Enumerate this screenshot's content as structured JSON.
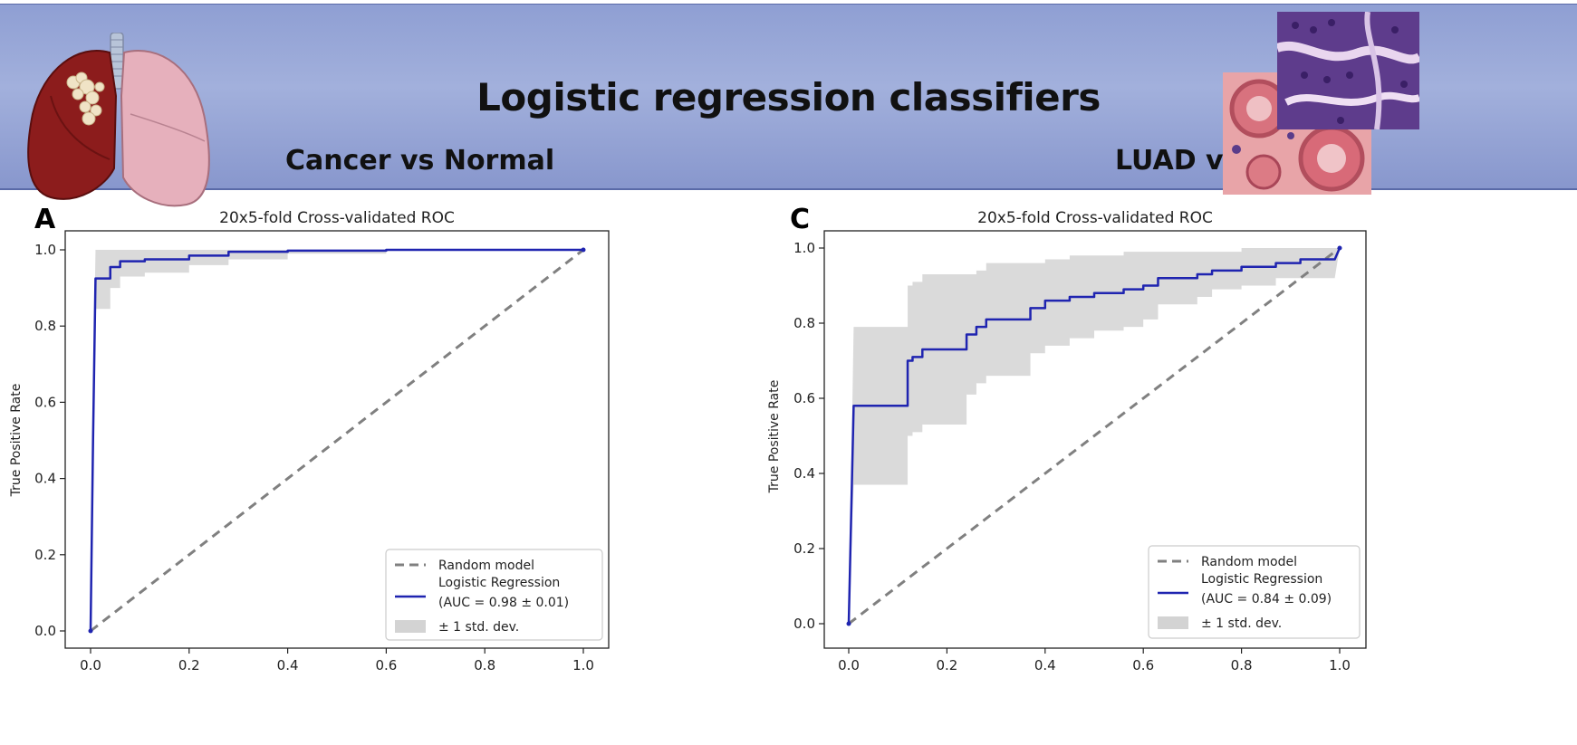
{
  "banner": {
    "title": "Logistic regression classifiers",
    "left_subtitle": "Cancer vs Normal",
    "right_subtitle": "LUAD vs LUSC"
  },
  "colors": {
    "banner": "#9aa8d8",
    "roc_line": "#1f24b0",
    "random_line": "#808080",
    "band": "#d3d3d3"
  },
  "chart_data": [
    {
      "panel_letter": "A",
      "type": "line",
      "title": "20x5-fold Cross-validated ROC",
      "xlabel": "",
      "ylabel": "True Positive Rate",
      "xlim": [
        0,
        1
      ],
      "ylim": [
        0,
        1
      ],
      "x_ticks": [
        "0.0",
        "0.2",
        "0.4",
        "0.6",
        "0.8",
        "1.0"
      ],
      "y_ticks": [
        "0.0",
        "0.2",
        "0.4",
        "0.6",
        "0.8",
        "1.0"
      ],
      "legend_position": "lower-right",
      "legend": {
        "random": "Random model",
        "roc_line1": "Logistic Regression",
        "roc_line2": "(AUC = 0.98 ± 0.01)",
        "band": "± 1 std. dev."
      },
      "random_line": {
        "x": [
          0,
          1
        ],
        "y": [
          0,
          1
        ]
      },
      "series": [
        {
          "x": [
            0.0,
            0.005,
            0.01,
            0.01,
            0.04,
            0.04,
            0.06,
            0.06,
            0.11,
            0.11,
            0.2,
            0.2,
            0.28,
            0.28,
            0.4,
            0.4,
            0.6,
            0.6,
            1.0
          ],
          "y": [
            0.0,
            0.5,
            0.925,
            0.925,
            0.925,
            0.955,
            0.955,
            0.97,
            0.97,
            0.975,
            0.975,
            0.985,
            0.985,
            0.995,
            0.995,
            0.998,
            0.998,
            1.0,
            1.0
          ],
          "upper": [
            0.0,
            0.6,
            1.0,
            1.0,
            1.0,
            1.0,
            1.0,
            1.0,
            1.0,
            1.0,
            1.0,
            1.0,
            1.0,
            1.0,
            1.0,
            1.0,
            1.0,
            1.0,
            1.0
          ],
          "lower": [
            0.0,
            0.4,
            0.845,
            0.845,
            0.845,
            0.9,
            0.9,
            0.93,
            0.93,
            0.94,
            0.94,
            0.96,
            0.96,
            0.975,
            0.975,
            0.99,
            0.99,
            1.0,
            1.0
          ]
        }
      ]
    },
    {
      "panel_letter": "C",
      "type": "line",
      "title": "20x5-fold Cross-validated ROC",
      "xlabel": "",
      "ylabel": "True Positive Rate",
      "xlim": [
        0,
        1
      ],
      "ylim": [
        0,
        1
      ],
      "x_ticks": [
        "0.0",
        "0.2",
        "0.4",
        "0.6",
        "0.8",
        "1.0"
      ],
      "y_ticks": [
        "0.0",
        "0.2",
        "0.4",
        "0.6",
        "0.8",
        "1.0"
      ],
      "legend_position": "lower-right",
      "legend": {
        "random": "Random model",
        "roc_line1": "Logistic Regression",
        "roc_line2": "(AUC = 0.84 ± 0.09)",
        "band": "± 1 std. dev."
      },
      "random_line": {
        "x": [
          0,
          1
        ],
        "y": [
          0,
          1
        ]
      },
      "series": [
        {
          "x": [
            0.0,
            0.01,
            0.01,
            0.12,
            0.12,
            0.13,
            0.13,
            0.15,
            0.15,
            0.24,
            0.24,
            0.26,
            0.26,
            0.28,
            0.28,
            0.37,
            0.37,
            0.4,
            0.4,
            0.45,
            0.45,
            0.5,
            0.5,
            0.56,
            0.56,
            0.6,
            0.6,
            0.63,
            0.63,
            0.71,
            0.71,
            0.74,
            0.74,
            0.8,
            0.8,
            0.87,
            0.87,
            0.92,
            0.92,
            0.99,
            1.0
          ],
          "y": [
            0.0,
            0.58,
            0.58,
            0.58,
            0.7,
            0.7,
            0.71,
            0.71,
            0.73,
            0.73,
            0.77,
            0.77,
            0.79,
            0.79,
            0.81,
            0.81,
            0.84,
            0.84,
            0.86,
            0.86,
            0.87,
            0.87,
            0.88,
            0.88,
            0.89,
            0.89,
            0.9,
            0.9,
            0.92,
            0.92,
            0.93,
            0.93,
            0.94,
            0.94,
            0.95,
            0.95,
            0.96,
            0.96,
            0.97,
            0.97,
            1.0
          ],
          "upper": [
            0.0,
            0.79,
            0.79,
            0.79,
            0.9,
            0.9,
            0.91,
            0.91,
            0.93,
            0.93,
            0.93,
            0.93,
            0.94,
            0.94,
            0.96,
            0.96,
            0.96,
            0.96,
            0.97,
            0.97,
            0.98,
            0.98,
            0.98,
            0.98,
            0.99,
            0.99,
            0.99,
            0.99,
            0.99,
            0.99,
            0.99,
            0.99,
            0.99,
            0.99,
            1.0,
            1.0,
            1.0,
            1.0,
            1.0,
            1.0,
            1.0
          ],
          "lower": [
            0.0,
            0.37,
            0.37,
            0.37,
            0.5,
            0.5,
            0.51,
            0.51,
            0.53,
            0.53,
            0.61,
            0.61,
            0.64,
            0.64,
            0.66,
            0.66,
            0.72,
            0.72,
            0.74,
            0.74,
            0.76,
            0.76,
            0.78,
            0.78,
            0.79,
            0.79,
            0.81,
            0.81,
            0.85,
            0.85,
            0.87,
            0.87,
            0.89,
            0.89,
            0.9,
            0.9,
            0.92,
            0.92,
            0.92,
            0.92,
            1.0
          ]
        }
      ]
    }
  ]
}
